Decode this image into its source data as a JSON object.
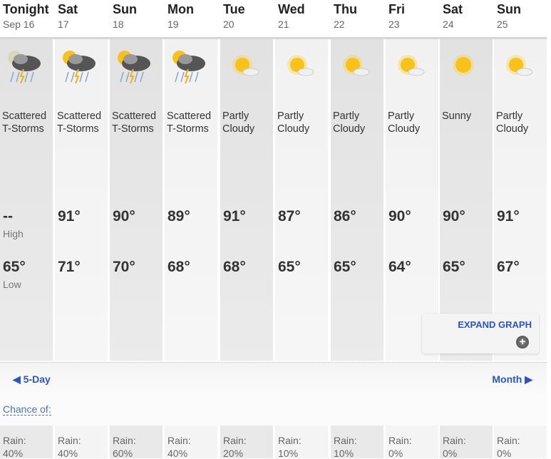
{
  "days": [
    {
      "name": "Tonight",
      "date": "Sep 16",
      "icon": "night-tstorm-icon",
      "cond1": "Scattered",
      "cond2": "T-Storms",
      "high": "--",
      "high_label": "High",
      "low": "65°",
      "low_label": "Low",
      "rain_label": "Rain:",
      "rain": "40%"
    },
    {
      "name": "Sat",
      "date": "17",
      "icon": "day-tstorm-icon",
      "cond1": "Scattered",
      "cond2": "T-Storms",
      "high": "91°",
      "low": "71°",
      "rain_label": "Rain:",
      "rain": "40%"
    },
    {
      "name": "Sun",
      "date": "18",
      "icon": "day-tstorm-icon",
      "cond1": "Scattered",
      "cond2": "T-Storms",
      "high": "90°",
      "low": "70°",
      "rain_label": "Rain:",
      "rain": "60%"
    },
    {
      "name": "Mon",
      "date": "19",
      "icon": "day-tstorm-icon",
      "cond1": "Scattered",
      "cond2": "T-Storms",
      "high": "89°",
      "low": "68°",
      "rain_label": "Rain:",
      "rain": "40%"
    },
    {
      "name": "Tue",
      "date": "20",
      "icon": "partly-cloudy-icon",
      "cond1": "Partly",
      "cond2": "Cloudy",
      "high": "91°",
      "low": "68°",
      "rain_label": "Rain:",
      "rain": "20%"
    },
    {
      "name": "Wed",
      "date": "21",
      "icon": "partly-cloudy-icon",
      "cond1": "Partly",
      "cond2": "Cloudy",
      "high": "87°",
      "low": "65°",
      "rain_label": "Rain:",
      "rain": "10%"
    },
    {
      "name": "Thu",
      "date": "22",
      "icon": "partly-cloudy-icon",
      "cond1": "Partly",
      "cond2": "Cloudy",
      "high": "86°",
      "low": "65°",
      "rain_label": "Rain:",
      "rain": "10%"
    },
    {
      "name": "Fri",
      "date": "23",
      "icon": "partly-cloudy-icon",
      "cond1": "Partly",
      "cond2": "Cloudy",
      "high": "90°",
      "low": "64°",
      "rain_label": "Rain:",
      "rain": "0%"
    },
    {
      "name": "Sat",
      "date": "24",
      "icon": "sunny-icon",
      "cond1": "Sunny",
      "cond2": "",
      "high": "90°",
      "low": "65°",
      "rain_label": "Rain:",
      "rain": "0%"
    },
    {
      "name": "Sun",
      "date": "25",
      "icon": "partly-cloudy-icon",
      "cond1": "Partly",
      "cond2": "Cloudy",
      "high": "91°",
      "low": "67°",
      "rain_label": "Rain:",
      "rain": "0%"
    }
  ],
  "expand_graph": "EXPAND GRAPH",
  "nav": {
    "prev": "◀ 5-Day",
    "next": "Month ▶"
  },
  "chance_of": "Chance of:",
  "colors": {
    "link": "#2a55c4"
  }
}
